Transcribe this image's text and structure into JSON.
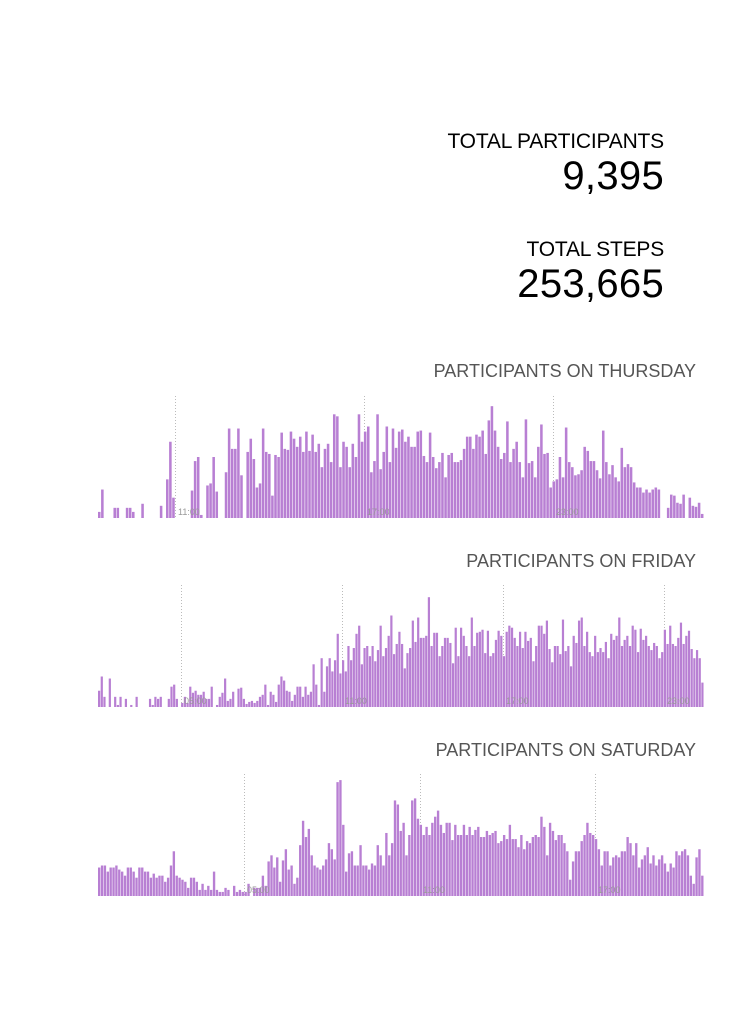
{
  "stats": {
    "participants_label": "TOTAL PARTICIPANTS",
    "participants_value": "9,395",
    "steps_label": "TOTAL STEPS",
    "steps_value": "253,665"
  },
  "colors": {
    "bar": "#b87fd3",
    "bar_edge": "#a066c2",
    "gridline": "#bbbbbb",
    "tick_text": "#999999"
  },
  "chart_data": [
    {
      "type": "bar",
      "title": "PARTICIPANTS ON THURSDAY",
      "ylim": [
        0,
        120
      ],
      "ticks": [
        {
          "index": 25,
          "label": "11:00"
        },
        {
          "index": 86,
          "label": "17:00"
        },
        {
          "index": 147,
          "label": "23:00"
        }
      ],
      "values": [
        6,
        28,
        0,
        0,
        0,
        10,
        10,
        0,
        0,
        10,
        10,
        6,
        0,
        0,
        14,
        0,
        0,
        0,
        0,
        0,
        12,
        0,
        38,
        75,
        20,
        0,
        0,
        0,
        0,
        0,
        27,
        56,
        60,
        3,
        0,
        32,
        34,
        60,
        26,
        0,
        0,
        45,
        88,
        68,
        68,
        88,
        42,
        0,
        65,
        78,
        58,
        30,
        34,
        88,
        65,
        63,
        22,
        62,
        60,
        84,
        68,
        67,
        85,
        78,
        70,
        80,
        65,
        85,
        66,
        82,
        65,
        73,
        50,
        68,
        73,
        55,
        102,
        100,
        50,
        75,
        70,
        50,
        73,
        60,
        102,
        75,
        85,
        90,
        45,
        56,
        102,
        48,
        65,
        90,
        55,
        88,
        69,
        85,
        87,
        75,
        80,
        70,
        70,
        85,
        86,
        61,
        55,
        84,
        60,
        49,
        55,
        64,
        40,
        62,
        64,
        55,
        55,
        57,
        68,
        80,
        80,
        68,
        82,
        80,
        86,
        63,
        96,
        110,
        86,
        70,
        58,
        64,
        95,
        55,
        68,
        75,
        55,
        40,
        97,
        54,
        56,
        40,
        70,
        92,
        63,
        64,
        30,
        36,
        38,
        60,
        40,
        89,
        55,
        50,
        42,
        43,
        47,
        70,
        66,
        56,
        56,
        47,
        39,
        86,
        55,
        43,
        52,
        40,
        36,
        69,
        50,
        53,
        50,
        35,
        30,
        30,
        25,
        28,
        25,
        28,
        30,
        28,
        0,
        0,
        10,
        23,
        22,
        15,
        14,
        23,
        0,
        20,
        12,
        11,
        15,
        4
      ]
    },
    {
      "type": "bar",
      "title": "PARTICIPANTS ON FRIDAY",
      "ylim": [
        0,
        120
      ],
      "ticks": [
        {
          "index": 31,
          "label": "05:00"
        },
        {
          "index": 91,
          "label": "11:00"
        },
        {
          "index": 151,
          "label": "17:00"
        },
        {
          "index": 211,
          "label": "23:00"
        }
      ],
      "values": [
        16,
        30,
        10,
        0,
        28,
        0,
        10,
        2,
        10,
        0,
        8,
        0,
        2,
        0,
        10,
        0,
        0,
        0,
        0,
        8,
        2,
        10,
        8,
        10,
        0,
        0,
        8,
        20,
        22,
        8,
        0,
        4,
        10,
        4,
        20,
        14,
        16,
        12,
        12,
        15,
        8,
        8,
        20,
        0,
        2,
        10,
        14,
        28,
        6,
        8,
        15,
        0,
        18,
        19,
        8,
        3,
        5,
        6,
        4,
        6,
        10,
        12,
        22,
        2,
        15,
        12,
        5,
        22,
        30,
        26,
        16,
        15,
        6,
        12,
        20,
        20,
        10,
        20,
        12,
        15,
        42,
        22,
        2,
        48,
        15,
        40,
        48,
        35,
        46,
        72,
        33,
        46,
        35,
        60,
        46,
        58,
        72,
        80,
        42,
        58,
        60,
        50,
        60,
        45,
        56,
        80,
        50,
        58,
        70,
        90,
        52,
        62,
        74,
        62,
        38,
        53,
        58,
        85,
        64,
        88,
        68,
        68,
        70,
        108,
        60,
        73,
        73,
        50,
        60,
        68,
        68,
        63,
        43,
        78,
        50,
        78,
        70,
        60,
        50,
        88,
        60,
        73,
        74,
        76,
        53,
        75,
        50,
        53,
        66,
        75,
        70,
        50,
        74,
        80,
        78,
        68,
        60,
        74,
        58,
        74,
        65,
        68,
        45,
        60,
        80,
        80,
        72,
        85,
        57,
        44,
        60,
        60,
        52,
        86,
        55,
        60,
        40,
        70,
        63,
        85,
        88,
        60,
        74,
        54,
        50,
        70,
        54,
        58,
        54,
        64,
        48,
        72,
        66,
        70,
        88,
        60,
        66,
        70,
        60,
        80,
        76,
        54,
        77,
        66,
        70,
        60,
        56,
        63,
        60,
        48,
        54,
        76,
        62,
        80,
        62,
        60,
        68,
        83,
        62,
        70,
        75,
        57,
        48,
        56,
        48,
        24
      ]
    },
    {
      "type": "bar",
      "title": "PARTICIPANTS ON SATURDAY",
      "ylim": [
        0,
        120
      ],
      "ticks": [
        {
          "index": 51,
          "label": "05:00"
        },
        {
          "index": 112,
          "label": "11:00"
        },
        {
          "index": 173,
          "label": "17:00"
        }
      ],
      "values": [
        28,
        30,
        30,
        24,
        28,
        28,
        30,
        26,
        24,
        20,
        28,
        28,
        24,
        18,
        28,
        28,
        24,
        24,
        18,
        22,
        18,
        20,
        20,
        14,
        18,
        30,
        44,
        20,
        18,
        16,
        14,
        8,
        18,
        18,
        14,
        6,
        12,
        6,
        10,
        6,
        24,
        6,
        4,
        4,
        8,
        6,
        0,
        10,
        4,
        6,
        4,
        4,
        12,
        0,
        8,
        8,
        8,
        20,
        10,
        34,
        40,
        28,
        38,
        14,
        35,
        46,
        26,
        30,
        12,
        18,
        50,
        74,
        58,
        66,
        40,
        30,
        28,
        26,
        30,
        36,
        52,
        46,
        36,
        112,
        114,
        70,
        24,
        42,
        44,
        30,
        30,
        50,
        30,
        30,
        26,
        32,
        30,
        50,
        40,
        30,
        62,
        40,
        52,
        94,
        90,
        64,
        72,
        40,
        60,
        94,
        96,
        76,
        70,
        60,
        68,
        60,
        72,
        78,
        84,
        70,
        62,
        72,
        72,
        55,
        70,
        60,
        60,
        70,
        60,
        68,
        60,
        65,
        68,
        58,
        58,
        64,
        60,
        62,
        64,
        52,
        54,
        60,
        56,
        70,
        56,
        56,
        48,
        60,
        46,
        54,
        52,
        58,
        60,
        58,
        78,
        68,
        40,
        72,
        64,
        55,
        60,
        60,
        52,
        44,
        16,
        34,
        44,
        44,
        54,
        60,
        72,
        62,
        60,
        56,
        46,
        30,
        44,
        44,
        30,
        38,
        40,
        38,
        44,
        44,
        58,
        52,
        40,
        52,
        28,
        36,
        40,
        48,
        32,
        40,
        30,
        36,
        40,
        32,
        24,
        32,
        28,
        44,
        40,
        44,
        46,
        40,
        20,
        12,
        38,
        46,
        20
      ]
    }
  ]
}
